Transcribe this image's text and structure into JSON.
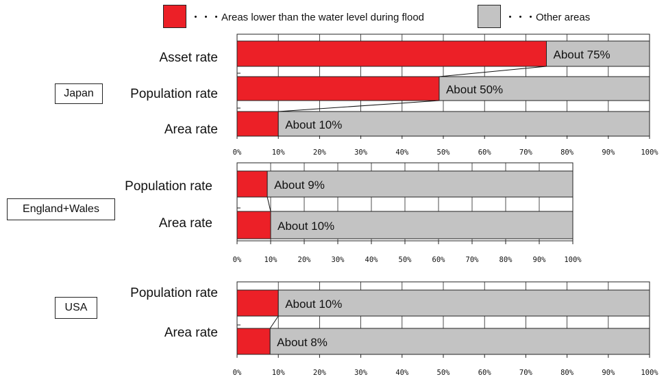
{
  "legend": {
    "flood_label": "・・・Areas lower than the water level during flood",
    "other_label": "・・・Other areas",
    "flood_color": "#ec2027",
    "other_color": "#c3c3c3"
  },
  "chart_data": [
    {
      "type": "bar",
      "stacked": true,
      "orientation": "horizontal",
      "group_label": "Japan",
      "categories": [
        "Asset rate",
        "Population rate",
        "Area rate"
      ],
      "series": [
        {
          "name": "Areas lower than the water level during flood",
          "values": [
            75,
            49,
            10
          ],
          "color": "#ec2027"
        },
        {
          "name": "Other areas",
          "values": [
            25,
            51,
            90
          ],
          "color": "#c3c3c3"
        }
      ],
      "data_labels": [
        "About 75%",
        "About 50%",
        "About 10%"
      ],
      "xlim": [
        0,
        100
      ],
      "ticks": [
        "0%",
        "10%",
        "20%",
        "30%",
        "40%",
        "50%",
        "60%",
        "70%",
        "80%",
        "90%",
        "100%"
      ],
      "grid": true
    },
    {
      "type": "bar",
      "stacked": true,
      "orientation": "horizontal",
      "group_label": "England+Wales",
      "categories": [
        "Population rate",
        "Area rate"
      ],
      "series": [
        {
          "name": "Areas lower than the water level during flood",
          "values": [
            9,
            10
          ],
          "color": "#ec2027"
        },
        {
          "name": "Other areas",
          "values": [
            91,
            90
          ],
          "color": "#c3c3c3"
        }
      ],
      "data_labels": [
        "About 9%",
        "About 10%"
      ],
      "xlim": [
        0,
        100
      ],
      "ticks": [
        "0%",
        "10%",
        "20%",
        "30%",
        "40%",
        "50%",
        "60%",
        "70%",
        "80%",
        "90%",
        "100%"
      ],
      "grid": true
    },
    {
      "type": "bar",
      "stacked": true,
      "orientation": "horizontal",
      "group_label": "USA",
      "categories": [
        "Population rate",
        "Area rate"
      ],
      "series": [
        {
          "name": "Areas lower than the water level during flood",
          "values": [
            10,
            8
          ],
          "color": "#ec2027"
        },
        {
          "name": "Other areas",
          "values": [
            90,
            92
          ],
          "color": "#c3c3c3"
        }
      ],
      "data_labels": [
        "About 10%",
        "About 8%"
      ],
      "xlim": [
        0,
        100
      ],
      "ticks": [
        "0%",
        "10%",
        "20%",
        "30%",
        "40%",
        "50%",
        "60%",
        "70%",
        "80%",
        "90%",
        "100%"
      ],
      "grid": true
    }
  ]
}
